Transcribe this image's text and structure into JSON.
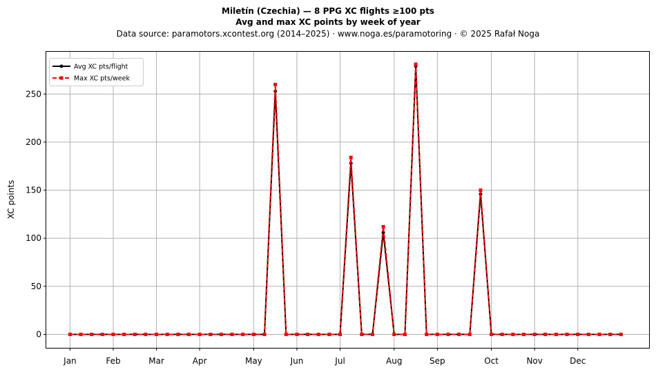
{
  "header": {
    "title_line1": "Miletín (Czechia)  —  8 PPG XC flights ≥100 pts",
    "title_line2": "Avg and max XC points by week of year",
    "subtitle": "Data source: paramotors.xcontest.org (2014–2025)  ·  www.noga.es/paramotoring  ·  © 2025 Rafał Noga"
  },
  "chart_data": {
    "type": "line",
    "title": "Miletín (Czechia)  —  8 PPG XC flights ≥100 pts",
    "subtitle": "Avg and max XC points by week of year",
    "xlabel": "",
    "ylabel": "XC points",
    "x": [
      1,
      2,
      3,
      4,
      5,
      6,
      7,
      8,
      9,
      10,
      11,
      12,
      13,
      14,
      15,
      16,
      17,
      18,
      19,
      20,
      21,
      22,
      23,
      24,
      25,
      26,
      27,
      28,
      29,
      30,
      31,
      32,
      33,
      34,
      35,
      36,
      37,
      38,
      39,
      40,
      41,
      42,
      43,
      44,
      45,
      46,
      47,
      48,
      49,
      50,
      51,
      52
    ],
    "x_tick_labels": [
      "Jan",
      "Feb",
      "Mar",
      "Apr",
      "May",
      "Jun",
      "Jul",
      "Aug",
      "Sep",
      "Oct",
      "Nov",
      "Dec"
    ],
    "x_tick_positions": [
      1,
      5,
      9,
      13,
      18,
      22,
      26,
      31,
      35,
      40,
      44,
      48
    ],
    "ylim": [
      -14,
      294
    ],
    "y_ticks": [
      0,
      50,
      100,
      150,
      200,
      250
    ],
    "grid": true,
    "legend_position": "top-left",
    "series": [
      {
        "name": "Avg XC pts/flight",
        "color": "#000000",
        "style": "solid",
        "marker": "circle",
        "values": [
          0,
          0,
          0,
          0,
          0,
          0,
          0,
          0,
          0,
          0,
          0,
          0,
          0,
          0,
          0,
          0,
          0,
          0,
          0,
          253,
          0,
          0,
          0,
          0,
          0,
          0,
          178,
          0,
          0,
          106,
          0,
          0,
          279,
          0,
          0,
          0,
          0,
          0,
          146,
          0,
          0,
          0,
          0,
          0,
          0,
          0,
          0,
          0,
          0,
          0,
          0,
          0
        ]
      },
      {
        "name": "Max XC pts/week",
        "color": "#ff0000",
        "style": "dashed",
        "marker": "square",
        "values": [
          0,
          0,
          0,
          0,
          0,
          0,
          0,
          0,
          0,
          0,
          0,
          0,
          0,
          0,
          0,
          0,
          0,
          0,
          0,
          260,
          0,
          0,
          0,
          0,
          0,
          0,
          184,
          0,
          0,
          112,
          0,
          0,
          281,
          0,
          0,
          0,
          0,
          0,
          150,
          0,
          0,
          0,
          0,
          0,
          0,
          0,
          0,
          0,
          0,
          0,
          0,
          0
        ]
      }
    ]
  }
}
